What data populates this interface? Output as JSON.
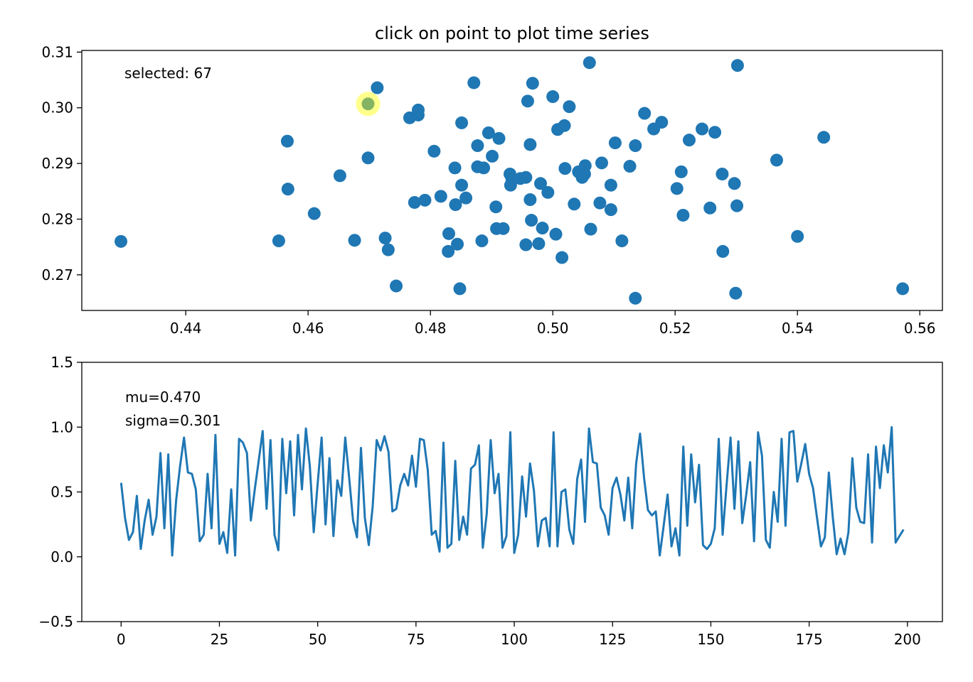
{
  "chart_data": [
    {
      "type": "scatter",
      "title": "click on point to plot time series",
      "annotation": "selected: 67",
      "xlim": [
        0.423,
        0.5637
      ],
      "ylim": [
        0.2636,
        0.3103
      ],
      "xticks": [
        0.44,
        0.46,
        0.48,
        0.5,
        0.52,
        0.54,
        0.56
      ],
      "xtick_labels": [
        "0.44",
        "0.46",
        "0.48",
        "0.50",
        "0.52",
        "0.54",
        "0.56"
      ],
      "yticks": [
        0.27,
        0.28,
        0.29,
        0.3,
        0.31
      ],
      "ytick_labels": [
        "0.27",
        "0.28",
        "0.29",
        "0.30",
        "0.31"
      ],
      "grid": false,
      "color": "#1f77b4",
      "highlight_color": "#ffff00",
      "selected": {
        "index": 67,
        "x": 0.4698,
        "y": 0.3007
      },
      "points": [
        [
          0.4294,
          0.276
        ],
        [
          0.4552,
          0.2761
        ],
        [
          0.4566,
          0.294
        ],
        [
          0.4567,
          0.2854
        ],
        [
          0.461,
          0.281
        ],
        [
          0.4652,
          0.2878
        ],
        [
          0.4676,
          0.2762
        ],
        [
          0.4698,
          0.291
        ],
        [
          0.4698,
          0.3007
        ],
        [
          0.4713,
          0.3036
        ],
        [
          0.4726,
          0.2766
        ],
        [
          0.4731,
          0.2745
        ],
        [
          0.4744,
          0.268
        ],
        [
          0.4766,
          0.2982
        ],
        [
          0.478,
          0.2996
        ],
        [
          0.478,
          0.2987
        ],
        [
          0.4774,
          0.283
        ],
        [
          0.4791,
          0.2834
        ],
        [
          0.4806,
          0.2922
        ],
        [
          0.4817,
          0.2841
        ],
        [
          0.483,
          0.2774
        ],
        [
          0.4829,
          0.2742
        ],
        [
          0.484,
          0.2892
        ],
        [
          0.4841,
          0.2826
        ],
        [
          0.4844,
          0.2755
        ],
        [
          0.4851,
          0.2973
        ],
        [
          0.4851,
          0.2861
        ],
        [
          0.4858,
          0.2838
        ],
        [
          0.4848,
          0.2675
        ],
        [
          0.4871,
          0.3045
        ],
        [
          0.4877,
          0.2932
        ],
        [
          0.4877,
          0.2894
        ],
        [
          0.4884,
          0.2761
        ],
        [
          0.4887,
          0.2892
        ],
        [
          0.4895,
          0.2955
        ],
        [
          0.4901,
          0.2913
        ],
        [
          0.4912,
          0.2945
        ],
        [
          0.4907,
          0.2822
        ],
        [
          0.4908,
          0.2783
        ],
        [
          0.4919,
          0.2783
        ],
        [
          0.493,
          0.2881
        ],
        [
          0.4931,
          0.2861
        ],
        [
          0.4933,
          0.2873
        ],
        [
          0.4947,
          0.2873
        ],
        [
          0.4956,
          0.2875
        ],
        [
          0.4959,
          0.3012
        ],
        [
          0.4956,
          0.2754
        ],
        [
          0.4963,
          0.2934
        ],
        [
          0.4963,
          0.2835
        ],
        [
          0.4965,
          0.2798
        ],
        [
          0.4967,
          0.3044
        ],
        [
          0.4977,
          0.2756
        ],
        [
          0.498,
          0.2864
        ],
        [
          0.4983,
          0.2784
        ],
        [
          0.4992,
          0.2848
        ],
        [
          0.5,
          0.302
        ],
        [
          0.5005,
          0.2773
        ],
        [
          0.5008,
          0.2961
        ],
        [
          0.5019,
          0.2968
        ],
        [
          0.5015,
          0.2731
        ],
        [
          0.502,
          0.2891
        ],
        [
          0.5027,
          0.3002
        ],
        [
          0.5035,
          0.2827
        ],
        [
          0.5042,
          0.2885
        ],
        [
          0.5048,
          0.2875
        ],
        [
          0.5052,
          0.2881
        ],
        [
          0.5053,
          0.2896
        ],
        [
          0.5062,
          0.2782
        ],
        [
          0.506,
          0.3081
        ],
        [
          0.508,
          0.2901
        ],
        [
          0.5077,
          0.2829
        ],
        [
          0.5095,
          0.2861
        ],
        [
          0.5095,
          0.2817
        ],
        [
          0.5102,
          0.2937
        ],
        [
          0.5113,
          0.2761
        ],
        [
          0.5126,
          0.2895
        ],
        [
          0.5135,
          0.2932
        ],
        [
          0.5135,
          0.2658
        ],
        [
          0.515,
          0.299
        ],
        [
          0.5165,
          0.2962
        ],
        [
          0.5178,
          0.2974
        ],
        [
          0.5203,
          0.2855
        ],
        [
          0.521,
          0.2885
        ],
        [
          0.5213,
          0.2807
        ],
        [
          0.5223,
          0.2942
        ],
        [
          0.5244,
          0.2962
        ],
        [
          0.5257,
          0.282
        ],
        [
          0.5265,
          0.2956
        ],
        [
          0.5278,
          0.2742
        ],
        [
          0.5277,
          0.2881
        ],
        [
          0.5297,
          0.2864
        ],
        [
          0.5299,
          0.2667
        ],
        [
          0.5301,
          0.2824
        ],
        [
          0.5302,
          0.3076
        ],
        [
          0.5366,
          0.2906
        ],
        [
          0.54,
          0.2769
        ],
        [
          0.5443,
          0.2947
        ],
        [
          0.5572,
          0.2675
        ]
      ]
    },
    {
      "type": "line",
      "annotation_lines": [
        "mu=0.470",
        "sigma=0.301"
      ],
      "xlim": [
        -10,
        208.9
      ],
      "ylim": [
        -0.5,
        1.5
      ],
      "xticks": [
        0,
        25,
        50,
        75,
        100,
        125,
        150,
        175,
        200
      ],
      "xtick_labels": [
        "0",
        "25",
        "50",
        "75",
        "100",
        "125",
        "150",
        "175",
        "200"
      ],
      "yticks": [
        -0.5,
        0.0,
        0.5,
        1.0,
        1.5
      ],
      "ytick_labels": [
        "−0.5",
        "0.0",
        "0.5",
        "1.0",
        "1.5"
      ],
      "grid": false,
      "color": "#1f77b4",
      "y": [
        0.57,
        0.3,
        0.13,
        0.19,
        0.47,
        0.06,
        0.28,
        0.44,
        0.17,
        0.31,
        0.8,
        0.22,
        0.79,
        0.01,
        0.44,
        0.7,
        0.92,
        0.65,
        0.64,
        0.52,
        0.12,
        0.17,
        0.64,
        0.22,
        0.94,
        0.1,
        0.19,
        0.03,
        0.52,
        0.01,
        0.91,
        0.88,
        0.8,
        0.28,
        0.52,
        0.74,
        0.97,
        0.37,
        0.9,
        0.17,
        0.05,
        0.91,
        0.49,
        0.89,
        0.32,
        0.94,
        0.52,
        0.99,
        0.7,
        0.19,
        0.57,
        0.92,
        0.25,
        0.76,
        0.16,
        0.59,
        0.47,
        0.92,
        0.61,
        0.28,
        0.15,
        0.84,
        0.3,
        0.09,
        0.39,
        0.9,
        0.82,
        0.93,
        0.81,
        0.35,
        0.37,
        0.55,
        0.64,
        0.55,
        0.78,
        0.54,
        0.91,
        0.9,
        0.67,
        0.17,
        0.2,
        0.04,
        0.88,
        0.07,
        0.1,
        0.74,
        0.13,
        0.31,
        0.17,
        0.68,
        0.71,
        0.86,
        0.07,
        0.33,
        0.9,
        0.49,
        0.64,
        0.07,
        0.16,
        0.96,
        0.03,
        0.17,
        0.62,
        0.31,
        0.72,
        0.51,
        0.08,
        0.28,
        0.3,
        0.08,
        0.96,
        0.08,
        0.5,
        0.52,
        0.21,
        0.1,
        0.6,
        0.75,
        0.27,
        0.99,
        0.73,
        0.72,
        0.38,
        0.32,
        0.17,
        0.53,
        0.61,
        0.48,
        0.28,
        0.61,
        0.22,
        0.72,
        0.95,
        0.61,
        0.36,
        0.32,
        0.35,
        0.01,
        0.24,
        0.48,
        0.08,
        0.22,
        0.01,
        0.85,
        0.24,
        0.79,
        0.42,
        0.71,
        0.09,
        0.06,
        0.1,
        0.22,
        0.91,
        0.17,
        0.55,
        0.92,
        0.37,
        0.89,
        0.26,
        0.48,
        0.73,
        0.12,
        0.96,
        0.78,
        0.13,
        0.07,
        0.5,
        0.27,
        0.91,
        0.24,
        0.96,
        0.97,
        0.58,
        0.72,
        0.87,
        0.64,
        0.53,
        0.3,
        0.08,
        0.15,
        0.65,
        0.31,
        0.02,
        0.14,
        0.02,
        0.19,
        0.76,
        0.38,
        0.27,
        0.26,
        0.79,
        0.11,
        0.85,
        0.53,
        0.86,
        0.65,
        1.0,
        0.11,
        0.16,
        0.21
      ]
    }
  ]
}
